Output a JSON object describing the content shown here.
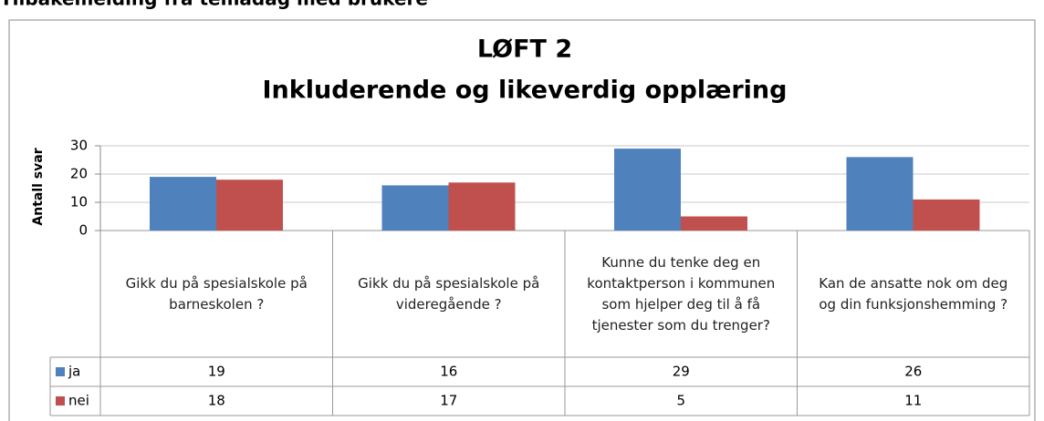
{
  "page_heading": "Tilbakemelding fra temadag med brukere",
  "chart_data": {
    "type": "bar",
    "title": "LØFT 2",
    "subtitle": "Inkluderende og likeverdig opplæring",
    "y_label": "Antall svar",
    "categories": [
      "Gikk du på spesialskole på barneskolen ?",
      "Gikk du på spesialskole på videregående ?",
      "Kunne du tenke deg en kontaktperson i kommunen som hjelper deg til å få tjenester som du trenger?",
      "Kan de ansatte nok om deg og din funksjonshemming ?"
    ],
    "series": [
      {
        "name": "ja",
        "color": "#4f81bd",
        "values": [
          19,
          16,
          29,
          26
        ]
      },
      {
        "name": "nei",
        "color": "#c0504d",
        "values": [
          18,
          17,
          5,
          11
        ]
      }
    ],
    "ylim": [
      0,
      30
    ],
    "yticks": [
      0,
      10,
      20,
      30
    ],
    "grid": true,
    "data_table": true
  }
}
